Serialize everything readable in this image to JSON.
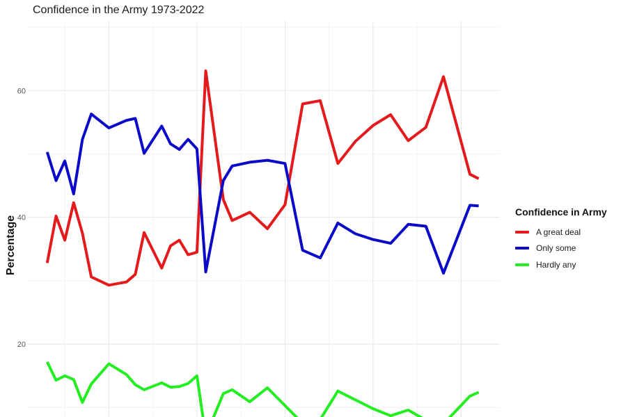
{
  "chart_data": {
    "type": "line",
    "title": "Confidence in the Army 1973-2022",
    "xlabel": "",
    "ylabel": "Percentage",
    "ylim": [
      8.5,
      71
    ],
    "xlim": [
      1970.8,
      2024.4
    ],
    "grid": true,
    "yticks": [
      20,
      40,
      60
    ],
    "legend": {
      "title": "Confidence in Army",
      "position": "right"
    },
    "series": [
      {
        "name": "A great deal",
        "color": "#e41a1c",
        "x": [
          1973,
          1974,
          1975,
          1976,
          1977,
          1978,
          1980,
          1982,
          1983,
          1984,
          1986,
          1987,
          1988,
          1989,
          1990,
          1991,
          1993,
          1994,
          1996,
          1998,
          2000,
          2002,
          2004,
          2006,
          2008,
          2010,
          2012,
          2014,
          2016,
          2018,
          2021,
          2022
        ],
        "y": [
          32.8,
          40.2,
          36.4,
          42.3,
          37.5,
          30.6,
          29.3,
          29.8,
          31.0,
          37.6,
          32.0,
          35.5,
          36.4,
          34.1,
          34.5,
          63.1,
          42.8,
          39.5,
          40.8,
          38.2,
          42.0,
          57.9,
          58.4,
          48.5,
          52.0,
          54.5,
          56.2,
          52.1,
          54.2,
          62.2,
          46.8,
          46.1
        ]
      },
      {
        "name": "Only some",
        "color": "#0a0ac8",
        "x": [
          1973,
          1974,
          1975,
          1976,
          1977,
          1978,
          1980,
          1982,
          1983,
          1984,
          1986,
          1987,
          1988,
          1989,
          1990,
          1991,
          1993,
          1994,
          1996,
          1998,
          2000,
          2002,
          2004,
          2006,
          2008,
          2010,
          2012,
          2014,
          2016,
          2018,
          2021,
          2022
        ],
        "y": [
          50.3,
          45.8,
          48.9,
          43.7,
          52.3,
          56.3,
          54.1,
          55.3,
          55.6,
          50.1,
          54.4,
          51.6,
          50.7,
          52.3,
          50.8,
          31.4,
          45.8,
          48.1,
          48.7,
          49.0,
          48.5,
          34.8,
          33.6,
          39.1,
          37.4,
          36.5,
          35.9,
          38.9,
          38.6,
          31.2,
          41.9,
          41.8
        ]
      },
      {
        "name": "Hardly any",
        "color": "#22ee22",
        "x": [
          1973,
          1974,
          1975,
          1976,
          1977,
          1978,
          1980,
          1982,
          1983,
          1984,
          1986,
          1987,
          1988,
          1989,
          1990,
          1991,
          1993,
          1994,
          1996,
          1998,
          2000,
          2002,
          2004,
          2006,
          2008,
          2010,
          2012,
          2014,
          2016,
          2018,
          2021,
          2022
        ],
        "y": [
          17.2,
          14.3,
          15.0,
          14.4,
          10.8,
          13.7,
          16.9,
          15.2,
          13.6,
          12.8,
          13.9,
          13.2,
          13.3,
          13.8,
          15.0,
          5.5,
          12.2,
          12.8,
          10.9,
          13.1,
          10.3,
          7.5,
          8.1,
          12.6,
          11.2,
          9.8,
          8.7,
          9.6,
          8.0,
          7.4,
          11.8,
          12.4
        ]
      }
    ]
  }
}
